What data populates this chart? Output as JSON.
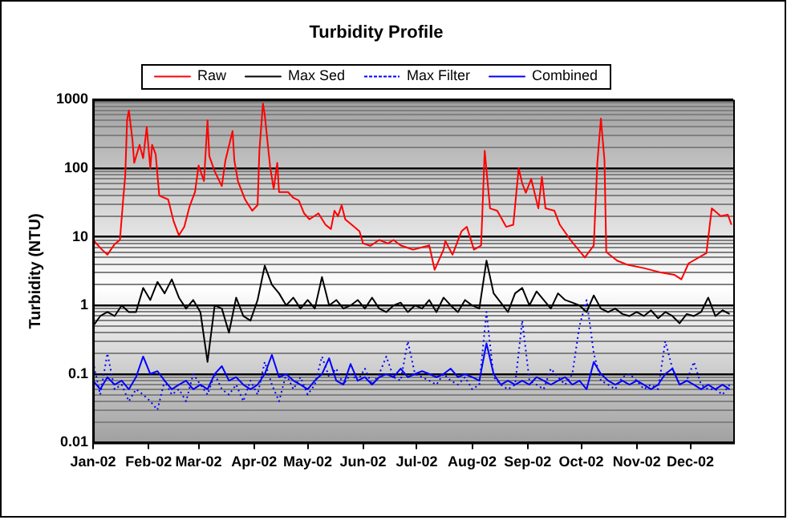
{
  "chart_data": {
    "type": "line",
    "title": "Turbidity Profile",
    "ylabel": "Turbidity (NTU)",
    "log": "y",
    "grid": "y",
    "legend": "top",
    "marker": "none",
    "xlim": [
      "2002-01-01",
      "2002-12-25"
    ],
    "xticks": [
      {
        "value": "2002-01-01",
        "label": "Jan-02"
      },
      {
        "value": "2002-02-01",
        "label": "Feb-02"
      },
      {
        "value": "2002-03-01",
        "label": "Mar-02"
      },
      {
        "value": "2002-04-01",
        "label": "Apr-02"
      },
      {
        "value": "2002-05-01",
        "label": "May-02"
      },
      {
        "value": "2002-06-01",
        "label": "Jun-02"
      },
      {
        "value": "2002-07-01",
        "label": "Jul-02"
      },
      {
        "value": "2002-08-01",
        "label": "Aug-02"
      },
      {
        "value": "2002-09-01",
        "label": "Sep-02"
      },
      {
        "value": "2002-10-01",
        "label": "Oct-02"
      },
      {
        "value": "2002-11-01",
        "label": "Nov-02"
      },
      {
        "value": "2002-12-01",
        "label": "Dec-02"
      }
    ],
    "ylim": [
      0.01,
      1000
    ],
    "yticks": [
      {
        "value": 0.01,
        "label": "0.01"
      },
      {
        "value": 0.02,
        "label": null
      },
      {
        "value": 0.03,
        "label": null
      },
      {
        "value": 0.04,
        "label": null
      },
      {
        "value": 0.05,
        "label": null
      },
      {
        "value": 0.06,
        "label": null
      },
      {
        "value": 0.07,
        "label": null
      },
      {
        "value": 0.08,
        "label": null
      },
      {
        "value": 0.09,
        "label": null
      },
      {
        "value": 0.1,
        "label": "0.1"
      },
      {
        "value": 0.2,
        "label": null
      },
      {
        "value": 0.3,
        "label": null
      },
      {
        "value": 0.4,
        "label": null
      },
      {
        "value": 0.5,
        "label": null
      },
      {
        "value": 0.6,
        "label": null
      },
      {
        "value": 0.7,
        "label": null
      },
      {
        "value": 0.8,
        "label": null
      },
      {
        "value": 0.9,
        "label": null
      },
      {
        "value": 1,
        "label": "1"
      },
      {
        "value": 2,
        "label": null
      },
      {
        "value": 3,
        "label": null
      },
      {
        "value": 4,
        "label": null
      },
      {
        "value": 5,
        "label": null
      },
      {
        "value": 6,
        "label": null
      },
      {
        "value": 7,
        "label": null
      },
      {
        "value": 8,
        "label": null
      },
      {
        "value": 9,
        "label": null
      },
      {
        "value": 10,
        "label": "10"
      },
      {
        "value": 20,
        "label": null
      },
      {
        "value": 30,
        "label": null
      },
      {
        "value": 40,
        "label": null
      },
      {
        "value": 50,
        "label": null
      },
      {
        "value": 60,
        "label": null
      },
      {
        "value": 70,
        "label": null
      },
      {
        "value": 80,
        "label": null
      },
      {
        "value": 90,
        "label": null
      },
      {
        "value": 100,
        "label": "100"
      },
      {
        "value": 200,
        "label": null
      },
      {
        "value": 300,
        "label": null
      },
      {
        "value": 400,
        "label": null
      },
      {
        "value": 500,
        "label": null
      },
      {
        "value": 600,
        "label": null
      },
      {
        "value": 700,
        "label": null
      },
      {
        "value": 800,
        "label": null
      },
      {
        "value": 900,
        "label": null
      },
      {
        "value": 1000,
        "label": "1000"
      }
    ],
    "x": [
      "2002-01-01",
      "2002-01-05",
      "2002-01-09",
      "2002-01-13",
      "2002-01-17",
      "2002-01-21",
      "2002-01-25",
      "2002-01-29",
      "2002-02-02",
      "2002-02-06",
      "2002-02-10",
      "2002-02-14",
      "2002-02-18",
      "2002-02-22",
      "2002-02-26",
      "2002-03-02",
      "2002-03-06",
      "2002-03-10",
      "2002-03-14",
      "2002-03-18",
      "2002-03-22",
      "2002-03-26",
      "2002-03-30",
      "2002-04-03",
      "2002-04-07",
      "2002-04-11",
      "2002-04-15",
      "2002-04-19",
      "2002-04-23",
      "2002-04-27",
      "2002-05-01",
      "2002-05-05",
      "2002-05-09",
      "2002-05-13",
      "2002-05-17",
      "2002-05-21",
      "2002-05-25",
      "2002-05-29",
      "2002-06-02",
      "2002-06-06",
      "2002-06-10",
      "2002-06-14",
      "2002-06-18",
      "2002-06-22",
      "2002-06-26",
      "2002-06-30",
      "2002-07-04",
      "2002-07-08",
      "2002-07-12",
      "2002-07-16",
      "2002-07-20",
      "2002-07-24",
      "2002-07-28",
      "2002-08-01",
      "2002-08-05",
      "2002-08-09",
      "2002-08-13",
      "2002-08-17",
      "2002-08-21",
      "2002-08-25",
      "2002-08-29",
      "2002-09-02",
      "2002-09-06",
      "2002-09-10",
      "2002-09-14",
      "2002-09-18",
      "2002-09-22",
      "2002-09-26",
      "2002-09-30",
      "2002-10-04",
      "2002-10-08",
      "2002-10-12",
      "2002-10-16",
      "2002-10-20",
      "2002-10-24",
      "2002-10-28",
      "2002-11-01",
      "2002-11-05",
      "2002-11-09",
      "2002-11-13",
      "2002-11-17",
      "2002-11-21",
      "2002-11-25",
      "2002-11-29",
      "2002-12-03",
      "2002-12-07",
      "2002-12-11",
      "2002-12-15",
      "2002-12-19",
      "2002-12-23"
    ],
    "series": [
      {
        "name": "Raw",
        "color": "#ff0000",
        "line_style": "solid",
        "x": [
          "2002-01-01",
          "2002-01-06",
          "2002-01-09",
          "2002-01-13",
          "2002-01-16",
          "2002-01-18",
          "2002-01-19",
          "2002-01-20",
          "2002-01-21",
          "2002-01-23",
          "2002-01-24",
          "2002-01-27",
          "2002-01-29",
          "2002-01-31",
          "2002-02-02",
          "2002-02-03",
          "2002-02-05",
          "2002-02-07",
          "2002-02-12",
          "2002-02-15",
          "2002-02-18",
          "2002-02-21",
          "2002-02-24",
          "2002-02-27",
          "2002-03-01",
          "2002-03-04",
          "2002-03-06",
          "2002-03-07",
          "2002-03-10",
          "2002-03-14",
          "2002-03-16",
          "2002-03-20",
          "2002-03-21",
          "2002-03-23",
          "2002-03-27",
          "2002-03-31",
          "2002-04-03",
          "2002-04-04",
          "2002-04-06",
          "2002-04-07",
          "2002-04-10",
          "2002-04-12",
          "2002-04-14",
          "2002-04-15",
          "2002-04-20",
          "2002-04-23",
          "2002-04-26",
          "2002-04-29",
          "2002-05-02",
          "2002-05-07",
          "2002-05-11",
          "2002-05-14",
          "2002-05-16",
          "2002-05-18",
          "2002-05-20",
          "2002-05-22",
          "2002-05-27",
          "2002-05-30",
          "2002-06-01",
          "2002-06-05",
          "2002-06-10",
          "2002-06-15",
          "2002-06-18",
          "2002-06-22",
          "2002-06-29",
          "2002-07-08",
          "2002-07-11",
          "2002-07-16",
          "2002-07-17",
          "2002-07-21",
          "2002-07-26",
          "2002-07-29",
          "2002-08-02",
          "2002-08-06",
          "2002-08-08",
          "2002-08-11",
          "2002-08-15",
          "2002-08-20",
          "2002-08-24",
          "2002-08-27",
          "2002-08-29",
          "2002-08-31",
          "2002-09-03",
          "2002-09-07",
          "2002-09-09",
          "2002-09-11",
          "2002-09-16",
          "2002-09-19",
          "2002-09-25",
          "2002-10-03",
          "2002-10-08",
          "2002-10-10",
          "2002-10-12",
          "2002-10-14",
          "2002-10-15",
          "2002-10-21",
          "2002-10-27",
          "2002-11-05",
          "2002-11-15",
          "2002-11-22",
          "2002-11-26",
          "2002-11-30",
          "2002-12-10",
          "2002-12-13",
          "2002-12-18",
          "2002-12-22",
          "2002-12-24"
        ],
        "values": [
          9,
          6.5,
          5.5,
          7.8,
          9,
          40,
          80,
          500,
          700,
          260,
          120,
          220,
          140,
          400,
          100,
          220,
          160,
          40,
          35,
          17,
          10.5,
          14,
          28,
          45,
          110,
          65,
          500,
          150,
          90,
          55,
          130,
          350,
          130,
          65,
          35,
          24,
          29,
          180,
          880,
          600,
          105,
          50,
          120,
          45,
          45,
          37,
          34,
          22,
          18,
          22,
          15,
          13,
          24,
          20,
          29,
          18,
          14,
          12,
          8,
          7.4,
          9,
          8,
          9,
          7.5,
          6.5,
          7.5,
          3.3,
          6.5,
          8.7,
          5.5,
          12,
          14,
          6.5,
          7.5,
          180,
          26,
          24,
          14,
          15,
          100,
          60,
          44,
          70,
          26,
          75,
          26,
          24,
          15,
          9,
          5,
          7.5,
          120,
          530,
          130,
          6,
          4.5,
          3.9,
          3.5,
          3,
          2.8,
          2.4,
          4.1,
          5.8,
          26,
          20,
          21,
          15
        ]
      },
      {
        "name": "Max Sed",
        "color": "#000000",
        "line_style": "solid",
        "values": [
          0.5,
          0.7,
          0.8,
          0.7,
          1.0,
          0.8,
          0.8,
          1.8,
          1.2,
          2.2,
          1.5,
          2.4,
          1.3,
          0.9,
          1.2,
          0.8,
          0.15,
          1.0,
          0.9,
          0.4,
          1.3,
          0.7,
          0.6,
          1.2,
          3.8,
          2.0,
          1.5,
          1.0,
          1.3,
          0.9,
          1.2,
          0.9,
          2.6,
          1.0,
          1.2,
          0.9,
          1.0,
          1.2,
          0.9,
          1.3,
          0.9,
          0.8,
          1.0,
          1.1,
          0.8,
          1.0,
          0.9,
          1.2,
          0.8,
          1.3,
          1.0,
          0.8,
          1.2,
          1.0,
          0.9,
          4.5,
          1.5,
          1.1,
          0.8,
          1.5,
          1.8,
          1.0,
          1.6,
          1.2,
          0.9,
          1.5,
          1.2,
          1.1,
          1.0,
          0.8,
          1.4,
          0.9,
          0.8,
          0.9,
          0.75,
          0.7,
          0.8,
          0.7,
          0.85,
          0.65,
          0.8,
          0.7,
          0.55,
          0.75,
          0.7,
          0.8,
          1.3,
          0.7,
          0.85,
          0.75
        ]
      },
      {
        "name": "Max Filter",
        "color": "#0000ff",
        "line_style": "dotted",
        "values": [
          0.15,
          0.05,
          0.2,
          0.06,
          0.07,
          0.04,
          0.06,
          0.05,
          0.04,
          0.03,
          0.08,
          0.05,
          0.06,
          0.04,
          0.1,
          0.07,
          0.05,
          0.1,
          0.06,
          0.05,
          0.07,
          0.04,
          0.08,
          0.05,
          0.15,
          0.07,
          0.04,
          0.1,
          0.06,
          0.09,
          0.05,
          0.07,
          0.18,
          0.09,
          0.12,
          0.07,
          0.1,
          0.08,
          0.12,
          0.07,
          0.1,
          0.18,
          0.09,
          0.08,
          0.3,
          0.1,
          0.09,
          0.08,
          0.07,
          0.1,
          0.08,
          0.07,
          0.09,
          0.06,
          0.07,
          0.8,
          0.09,
          0.07,
          0.06,
          0.07,
          0.6,
          0.08,
          0.07,
          0.06,
          0.12,
          0.09,
          0.07,
          0.1,
          0.5,
          1.2,
          0.2,
          0.08,
          0.07,
          0.06,
          0.09,
          0.1,
          0.08,
          0.06,
          0.07,
          0.06,
          0.3,
          0.12,
          0.07,
          0.08,
          0.15,
          0.07,
          0.06,
          0.06,
          0.05,
          0.07
        ]
      },
      {
        "name": "Combined",
        "color": "#0000ff",
        "line_style": "solid",
        "values": [
          0.08,
          0.06,
          0.09,
          0.07,
          0.08,
          0.06,
          0.09,
          0.18,
          0.1,
          0.11,
          0.08,
          0.06,
          0.07,
          0.08,
          0.06,
          0.07,
          0.06,
          0.1,
          0.13,
          0.08,
          0.09,
          0.07,
          0.06,
          0.07,
          0.1,
          0.19,
          0.09,
          0.1,
          0.08,
          0.07,
          0.06,
          0.08,
          0.1,
          0.17,
          0.08,
          0.07,
          0.14,
          0.08,
          0.09,
          0.07,
          0.09,
          0.1,
          0.09,
          0.12,
          0.09,
          0.1,
          0.11,
          0.1,
          0.09,
          0.1,
          0.12,
          0.09,
          0.1,
          0.09,
          0.08,
          0.28,
          0.1,
          0.07,
          0.08,
          0.07,
          0.08,
          0.07,
          0.09,
          0.08,
          0.07,
          0.08,
          0.09,
          0.07,
          0.08,
          0.06,
          0.15,
          0.1,
          0.08,
          0.07,
          0.08,
          0.07,
          0.08,
          0.07,
          0.06,
          0.07,
          0.1,
          0.12,
          0.07,
          0.08,
          0.07,
          0.06,
          0.07,
          0.06,
          0.07,
          0.06
        ]
      }
    ]
  }
}
